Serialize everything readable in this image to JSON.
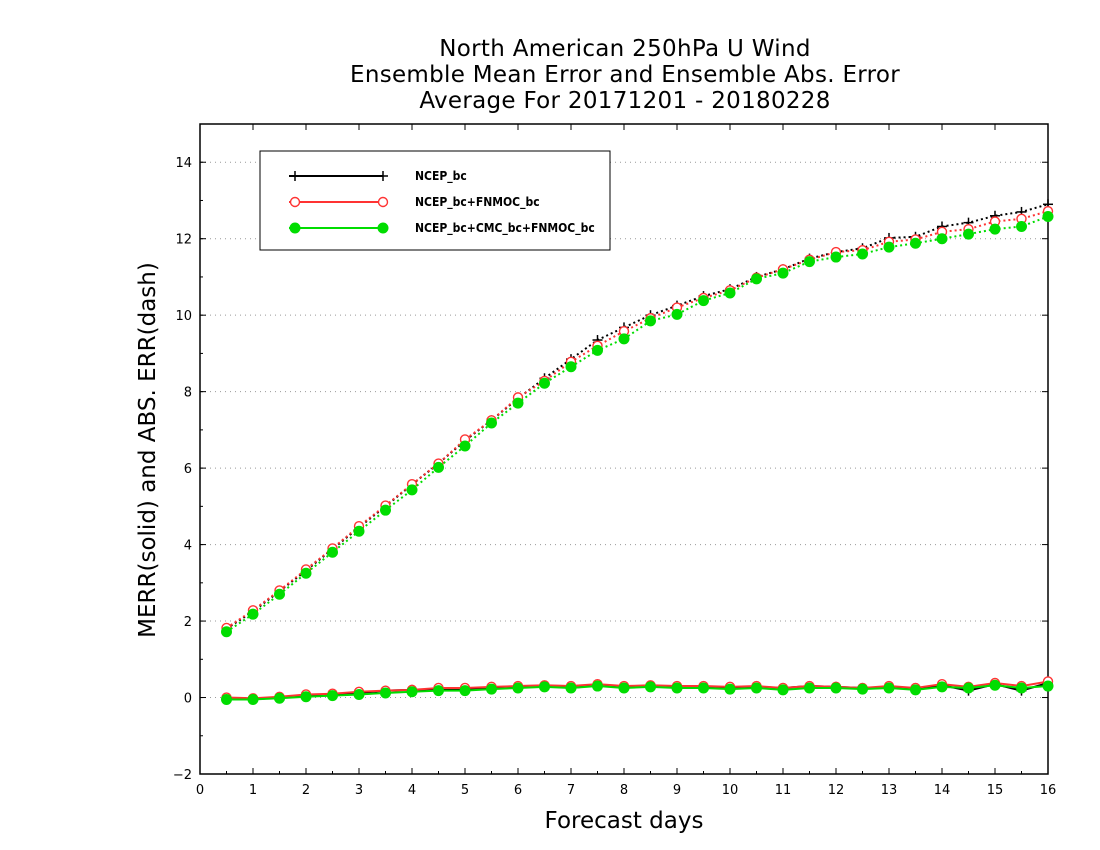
{
  "chart_data": {
    "type": "line",
    "title": [
      "North American 250hPa U Wind",
      "Ensemble Mean Error and Ensemble Abs. Error",
      "Average For 20171201 - 20180228"
    ],
    "xlabel": "Forecast days",
    "ylabel": "MERR(solid) and ABS. ERR(dash)",
    "xlim": [
      0,
      16
    ],
    "ylim": [
      -2,
      15
    ],
    "xticks": [
      0,
      1,
      2,
      3,
      4,
      5,
      6,
      7,
      8,
      9,
      10,
      11,
      12,
      13,
      14,
      15,
      16
    ],
    "yticks": [
      -2,
      0,
      2,
      4,
      6,
      8,
      10,
      12,
      14
    ],
    "grid": "horizontal dotted",
    "legend_position": "top-left",
    "x": [
      0.5,
      1,
      1.5,
      2,
      2.5,
      3,
      3.5,
      4,
      4.5,
      5,
      5.5,
      6,
      6.5,
      7,
      7.5,
      8,
      8.5,
      9,
      9.5,
      10,
      10.5,
      11,
      11.5,
      12,
      12.5,
      13,
      13.5,
      14,
      14.5,
      15,
      15.5,
      16
    ],
    "series": [
      {
        "name": "NCEP_bc",
        "color": "#000000",
        "marker": "plus",
        "abs_err": [
          1.8,
          2.25,
          2.78,
          3.32,
          3.88,
          4.45,
          5.0,
          5.57,
          6.12,
          6.72,
          7.25,
          7.82,
          8.35,
          8.85,
          9.35,
          9.68,
          10.0,
          10.25,
          10.5,
          10.68,
          11.0,
          11.2,
          11.48,
          11.65,
          11.75,
          12.02,
          12.05,
          12.32,
          12.42,
          12.6,
          12.7,
          12.9
        ],
        "mean_err": [
          -0.02,
          -0.05,
          0.0,
          0.05,
          0.08,
          0.12,
          0.18,
          0.2,
          0.22,
          0.22,
          0.25,
          0.28,
          0.3,
          0.25,
          0.32,
          0.28,
          0.3,
          0.28,
          0.28,
          0.25,
          0.28,
          0.25,
          0.3,
          0.28,
          0.25,
          0.28,
          0.22,
          0.32,
          0.18,
          0.35,
          0.18,
          0.38
        ]
      },
      {
        "name": "NCEP_bc+FNMOC_bc",
        "color": "#ff3333",
        "marker": "open-circle",
        "abs_err": [
          1.82,
          2.28,
          2.8,
          3.35,
          3.9,
          4.48,
          5.02,
          5.58,
          6.12,
          6.75,
          7.25,
          7.85,
          8.28,
          8.78,
          9.2,
          9.58,
          9.92,
          10.2,
          10.45,
          10.65,
          10.98,
          11.2,
          11.45,
          11.65,
          11.7,
          11.92,
          11.98,
          12.18,
          12.25,
          12.45,
          12.52,
          12.72
        ],
        "mean_err": [
          0.0,
          -0.02,
          0.02,
          0.08,
          0.1,
          0.15,
          0.18,
          0.2,
          0.25,
          0.25,
          0.28,
          0.3,
          0.32,
          0.3,
          0.35,
          0.3,
          0.32,
          0.3,
          0.3,
          0.28,
          0.3,
          0.25,
          0.3,
          0.28,
          0.25,
          0.3,
          0.25,
          0.35,
          0.28,
          0.38,
          0.3,
          0.42
        ]
      },
      {
        "name": "NCEP_bc+CMC_bc+FNMOC_bc",
        "color": "#00dd00",
        "marker": "filled-circle",
        "abs_err": [
          1.72,
          2.18,
          2.7,
          3.25,
          3.8,
          4.35,
          4.9,
          5.43,
          6.02,
          6.58,
          7.18,
          7.7,
          8.22,
          8.65,
          9.08,
          9.38,
          9.85,
          10.02,
          10.38,
          10.58,
          10.95,
          11.1,
          11.4,
          11.52,
          11.6,
          11.78,
          11.88,
          12.0,
          12.12,
          12.25,
          12.32,
          12.58
        ],
        "mean_err": [
          -0.05,
          -0.05,
          -0.02,
          0.02,
          0.05,
          0.08,
          0.12,
          0.15,
          0.18,
          0.18,
          0.22,
          0.25,
          0.28,
          0.25,
          0.3,
          0.25,
          0.28,
          0.25,
          0.25,
          0.22,
          0.25,
          0.2,
          0.25,
          0.25,
          0.22,
          0.25,
          0.2,
          0.28,
          0.25,
          0.32,
          0.25,
          0.3
        ]
      }
    ]
  }
}
